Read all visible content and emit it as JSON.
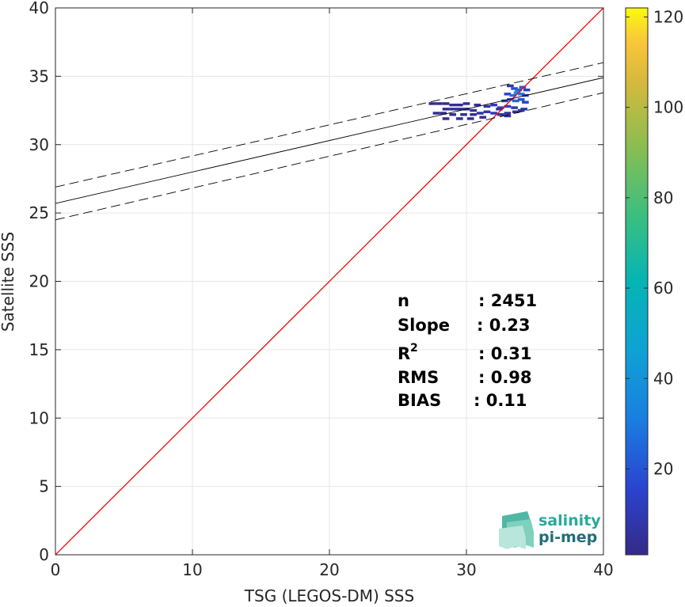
{
  "chart_data": {
    "type": "heatmap",
    "xlabel": "TSG (LEGOS-DM) SSS",
    "ylabel": "Satellite SSS",
    "xlim": [
      0,
      40
    ],
    "ylim": [
      0,
      40
    ],
    "x_ticks": [
      "0",
      "10",
      "20",
      "30",
      "40"
    ],
    "y_ticks": [
      "0",
      "5",
      "10",
      "15",
      "20",
      "25",
      "30",
      "35",
      "40"
    ],
    "grid": true,
    "colorbar": {
      "colormap": "parula",
      "range": [
        1,
        122
      ],
      "ticks": [
        "20",
        "40",
        "60",
        "80",
        "100",
        "120"
      ],
      "tick_values": [
        20,
        40,
        60,
        80,
        100,
        120
      ]
    },
    "lines": [
      {
        "kind": "identity",
        "color": "#ff0000",
        "x": [
          0,
          40
        ],
        "y": [
          0,
          40
        ]
      },
      {
        "kind": "regression",
        "color": "#000000",
        "style": "solid",
        "x": [
          0,
          40
        ],
        "y": [
          25.7,
          34.9
        ]
      },
      {
        "kind": "regression-upper",
        "color": "#000000",
        "style": "dashed",
        "x": [
          0,
          40
        ],
        "y": [
          26.9,
          36.0
        ]
      },
      {
        "kind": "regression-lower",
        "color": "#000000",
        "style": "dashed",
        "x": [
          0,
          40
        ],
        "y": [
          24.5,
          33.8
        ]
      }
    ],
    "cells": [
      [
        27.5,
        33.0,
        2
      ],
      [
        28.0,
        33.0,
        3
      ],
      [
        28.5,
        33.0,
        2
      ],
      [
        29.0,
        32.9,
        4
      ],
      [
        29.5,
        32.9,
        3
      ],
      [
        28.5,
        32.6,
        3
      ],
      [
        29.0,
        32.6,
        5
      ],
      [
        29.5,
        32.6,
        4
      ],
      [
        30.0,
        32.6,
        6
      ],
      [
        30.5,
        32.5,
        5
      ],
      [
        27.8,
        32.3,
        2
      ],
      [
        28.3,
        32.3,
        3
      ],
      [
        29.0,
        32.2,
        4
      ],
      [
        29.8,
        32.2,
        5
      ],
      [
        30.5,
        32.2,
        4
      ],
      [
        31.0,
        32.3,
        6
      ],
      [
        31.5,
        32.4,
        8
      ],
      [
        32.0,
        32.3,
        10
      ],
      [
        32.5,
        32.2,
        7
      ],
      [
        33.0,
        32.1,
        5
      ],
      [
        28.5,
        31.9,
        2
      ],
      [
        29.5,
        31.9,
        3
      ],
      [
        30.3,
        31.9,
        2
      ],
      [
        31.2,
        32.0,
        3
      ],
      [
        31.5,
        32.8,
        7
      ],
      [
        32.0,
        32.9,
        9
      ],
      [
        32.5,
        32.7,
        12
      ],
      [
        33.0,
        32.8,
        14
      ],
      [
        33.5,
        32.7,
        10
      ],
      [
        32.8,
        33.2,
        16
      ],
      [
        33.2,
        33.3,
        22
      ],
      [
        33.6,
        33.2,
        25
      ],
      [
        34.0,
        33.3,
        20
      ],
      [
        34.3,
        33.1,
        15
      ],
      [
        33.0,
        33.7,
        14
      ],
      [
        33.4,
        33.6,
        28
      ],
      [
        33.7,
        33.8,
        35
      ],
      [
        34.0,
        33.7,
        30
      ],
      [
        34.3,
        33.6,
        18
      ],
      [
        33.5,
        34.1,
        18
      ],
      [
        33.8,
        34.0,
        26
      ],
      [
        34.1,
        34.2,
        22
      ],
      [
        34.4,
        34.0,
        14
      ],
      [
        34.2,
        32.6,
        9
      ],
      [
        32.4,
        32.6,
        6
      ],
      [
        33.6,
        32.4,
        5
      ],
      [
        34.0,
        32.5,
        7
      ],
      [
        33.2,
        34.3,
        8
      ],
      [
        33.0,
        32.3,
        6
      ],
      [
        30.0,
        33.0,
        3
      ],
      [
        30.8,
        32.9,
        4
      ]
    ],
    "annotations": [
      {
        "key": "n",
        "sup": "",
        "value": ": 2451"
      },
      {
        "key": "Slope",
        "sup": "",
        "value": ": 0.23"
      },
      {
        "key": "R",
        "sup": "2",
        "value": ": 0.31"
      },
      {
        "key": "RMS",
        "sup": "",
        "value": ": 0.98"
      },
      {
        "key": "BIAS",
        "sup": "",
        "value": ": 0.11"
      }
    ]
  },
  "logo": {
    "line1": "salinity",
    "line2": "pi-mep",
    "color1": "#2aa89a",
    "color2": "#1f6e78"
  }
}
